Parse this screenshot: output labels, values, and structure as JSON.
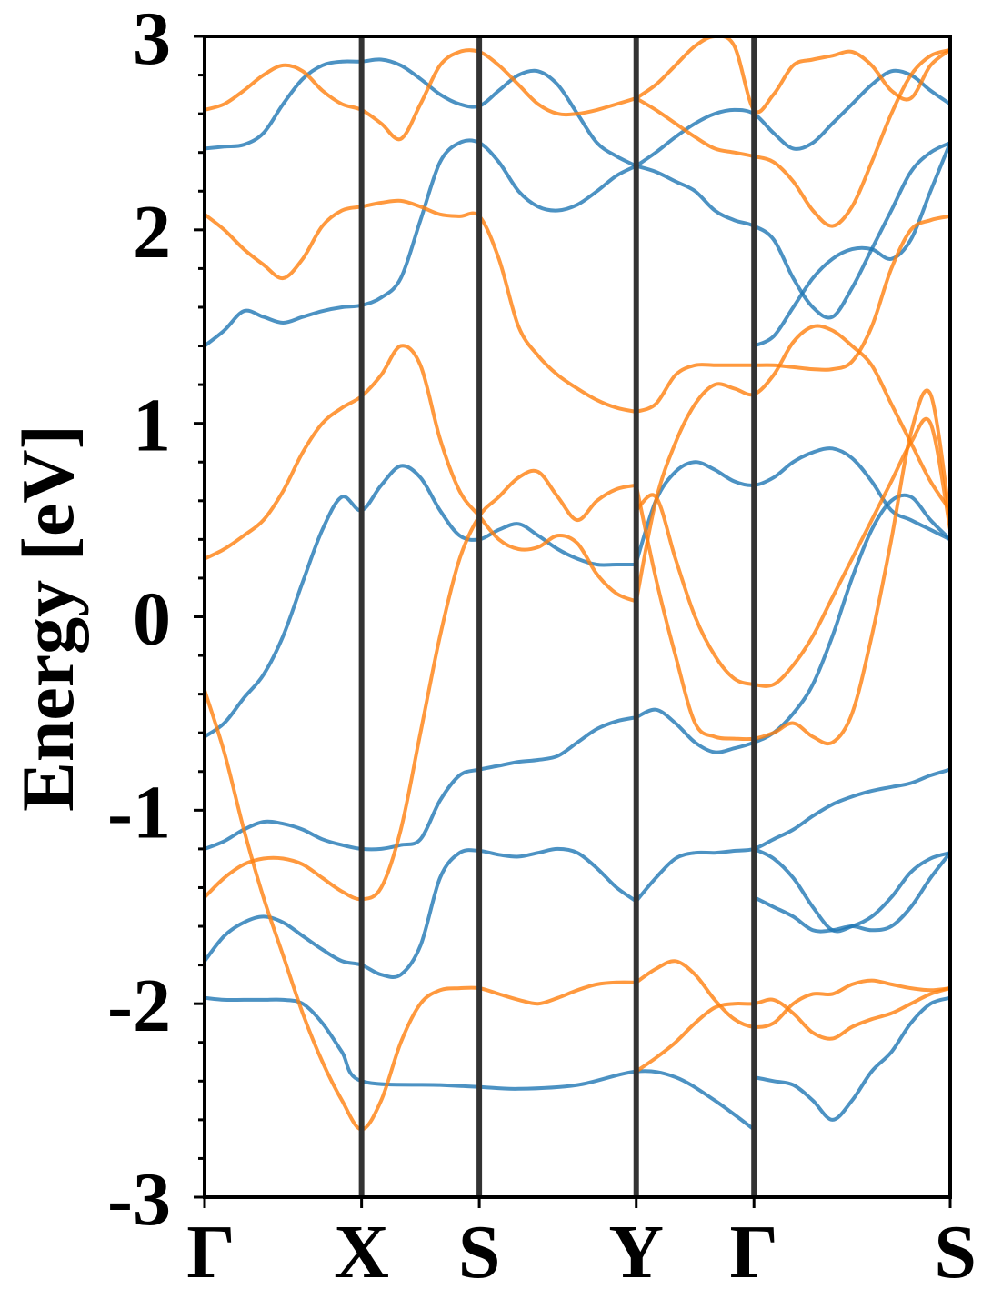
{
  "chart_data": {
    "type": "line",
    "title": "",
    "xlabel": "",
    "ylabel": "Energy [eV]",
    "ylim": [
      -3,
      3
    ],
    "yticks": [
      "3",
      "2",
      "1",
      "0",
      "-1",
      "-2",
      "-3"
    ],
    "ytick_values": [
      3,
      2,
      1,
      0,
      -1,
      -2,
      -3
    ],
    "yminor_step": 0.2,
    "kpath_labels": [
      "Γ",
      "X",
      "S",
      "Y",
      "Γ",
      "S"
    ],
    "kpath_positions": [
      0,
      0.8,
      1.4,
      2.2,
      2.8,
      3.8
    ],
    "colors": {
      "blue": "#1f77b4",
      "orange": "#ff7f0e",
      "kline": "#333333"
    },
    "grid": false,
    "legend": "none",
    "series": [
      {
        "color": "#1f77b4",
        "x": [
          0,
          0.1,
          0.2,
          0.3,
          0.4,
          0.5,
          0.6,
          0.7,
          0.8,
          0.9,
          1.0,
          1.1,
          1.2,
          1.3,
          1.4,
          1.5,
          1.6,
          1.7,
          1.8,
          1.9,
          2.0,
          2.1,
          2.2
        ],
        "y": [
          -0.62,
          -0.55,
          -0.42,
          -0.3,
          -0.1,
          0.18,
          0.45,
          0.62,
          0.55,
          0.68,
          0.78,
          0.72,
          0.55,
          0.42,
          0.4,
          0.45,
          0.48,
          0.42,
          0.35,
          0.3,
          0.27,
          0.27,
          0.27
        ]
      },
      {
        "color": "#1f77b4",
        "x": [
          0,
          0.1,
          0.2,
          0.3,
          0.4,
          0.5,
          0.6,
          0.7,
          0.8,
          0.9,
          1.0,
          1.1,
          1.2,
          1.3,
          1.4,
          1.5,
          1.6,
          1.7,
          1.8,
          1.9,
          2.0,
          2.1,
          2.2
        ],
        "y": [
          -1.2,
          -1.16,
          -1.1,
          -1.06,
          -1.07,
          -1.1,
          -1.15,
          -1.18,
          -1.2,
          -1.2,
          -1.18,
          -1.15,
          -0.95,
          -0.82,
          -0.79,
          -0.77,
          -0.75,
          -0.74,
          -0.72,
          -0.65,
          -0.58,
          -0.54,
          -0.52
        ]
      },
      {
        "color": "#1f77b4",
        "x": [
          0,
          0.1,
          0.2,
          0.3,
          0.4,
          0.5,
          0.6,
          0.7,
          0.8,
          0.9,
          1.0,
          1.1,
          1.2,
          1.3,
          1.4,
          1.5,
          1.6,
          1.7,
          1.8,
          1.9,
          2.0,
          2.1,
          2.2
        ],
        "y": [
          -1.78,
          -1.65,
          -1.58,
          -1.55,
          -1.58,
          -1.65,
          -1.72,
          -1.78,
          -1.8,
          -1.85,
          -1.85,
          -1.7,
          -1.35,
          -1.22,
          -1.21,
          -1.23,
          -1.24,
          -1.22,
          -1.2,
          -1.22,
          -1.3,
          -1.4,
          -1.47
        ]
      },
      {
        "color": "#1f77b4",
        "x": [
          0,
          0.1,
          0.2,
          0.3,
          0.4,
          0.5,
          0.6,
          0.7,
          0.8,
          0.9,
          1.0,
          1.1,
          1.2,
          1.3,
          1.4,
          1.5,
          1.6,
          1.7,
          1.8,
          1.9,
          2.0,
          2.1,
          2.2
        ],
        "y": [
          2.42,
          2.43,
          2.44,
          2.5,
          2.65,
          2.78,
          2.85,
          2.87,
          2.87,
          2.88,
          2.85,
          2.78,
          2.7,
          2.65,
          2.64,
          2.72,
          2.8,
          2.82,
          2.75,
          2.6,
          2.45,
          2.38,
          2.33
        ]
      },
      {
        "color": "#1f77b4",
        "x": [
          0,
          0.1,
          0.2,
          0.3,
          0.4,
          0.5,
          0.6,
          0.7,
          0.8,
          0.9,
          1.0,
          1.1,
          1.2,
          1.3,
          1.4,
          1.5,
          1.6,
          1.7,
          1.8,
          1.9,
          2.0,
          2.1,
          2.2
        ],
        "y": [
          1.4,
          1.48,
          1.58,
          1.55,
          1.52,
          1.55,
          1.58,
          1.6,
          1.61,
          1.65,
          1.75,
          2.05,
          2.35,
          2.45,
          2.45,
          2.35,
          2.2,
          2.12,
          2.1,
          2.13,
          2.2,
          2.28,
          2.33
        ]
      },
      {
        "color": "#1f77b4",
        "x": [
          0,
          0.1,
          0.2,
          0.3,
          0.4,
          0.5,
          0.6,
          0.7,
          0.8,
          1.2,
          1.4,
          1.6,
          1.9,
          2.2,
          2.4,
          2.6,
          2.8
        ],
        "y": [
          -1.97,
          -1.98,
          -1.98,
          -1.98,
          -1.98,
          -2.0,
          -2.1,
          -2.25,
          -2.4,
          -2.42,
          -2.43,
          -2.44,
          -2.42,
          -2.35,
          -2.38,
          -2.5,
          -2.65
        ]
      },
      {
        "color": "#1f77b4",
        "x": [
          2.2,
          2.3,
          2.4,
          2.5,
          2.6,
          2.7,
          2.8,
          2.9,
          3.0,
          3.1,
          3.2,
          3.3,
          3.4,
          3.5,
          3.6,
          3.7,
          3.8
        ],
        "y": [
          0.28,
          0.6,
          0.75,
          0.8,
          0.76,
          0.7,
          0.68,
          0.72,
          0.8,
          0.85,
          0.87,
          0.82,
          0.7,
          0.55,
          0.5,
          0.45,
          0.4
        ]
      },
      {
        "color": "#1f77b4",
        "x": [
          2.2,
          2.3,
          2.4,
          2.5,
          2.6,
          2.7,
          2.8,
          2.9,
          3.0,
          3.1,
          3.2,
          3.3,
          3.4,
          3.5,
          3.6,
          3.7,
          3.8
        ],
        "y": [
          -0.52,
          -0.48,
          -0.55,
          -0.65,
          -0.7,
          -0.68,
          -0.65,
          -0.6,
          -0.5,
          -0.35,
          -0.1,
          0.2,
          0.45,
          0.6,
          0.62,
          0.5,
          0.4
        ]
      },
      {
        "color": "#1f77b4",
        "x": [
          2.2,
          2.3,
          2.4,
          2.5,
          2.6,
          2.7,
          2.8,
          2.9,
          3.0,
          3.1,
          3.2,
          3.3,
          3.4,
          3.5,
          3.6,
          3.7,
          3.8
        ],
        "y": [
          -1.47,
          -1.35,
          -1.25,
          -1.22,
          -1.22,
          -1.21,
          -1.2,
          -1.15,
          -1.1,
          -1.03,
          -0.97,
          -0.93,
          -0.9,
          -0.88,
          -0.86,
          -0.82,
          -0.79
        ]
      },
      {
        "color": "#1f77b4",
        "x": [
          2.2,
          2.3,
          2.4,
          2.5,
          2.6,
          2.7,
          2.8,
          2.9,
          3.0,
          3.1,
          3.2,
          3.3,
          3.4,
          3.5,
          3.6,
          3.7,
          3.8
        ],
        "y": [
          2.33,
          2.3,
          2.25,
          2.2,
          2.1,
          2.05,
          2.02,
          1.95,
          1.75,
          1.6,
          1.55,
          1.7,
          1.9,
          2.1,
          2.3,
          2.4,
          2.45
        ]
      },
      {
        "color": "#1f77b4",
        "x": [
          2.2,
          2.3,
          2.4,
          2.5,
          2.6,
          2.7,
          2.8,
          2.9,
          3.0,
          3.1,
          3.2,
          3.3,
          3.4,
          3.5,
          3.6,
          3.7,
          3.8
        ],
        "y": [
          2.33,
          2.4,
          2.48,
          2.55,
          2.6,
          2.62,
          2.6,
          2.5,
          2.42,
          2.45,
          2.55,
          2.65,
          2.75,
          2.82,
          2.8,
          2.72,
          2.65
        ]
      },
      {
        "color": "#1f77b4",
        "x": [
          2.8,
          2.9,
          3.0,
          3.1,
          3.2,
          3.3,
          3.4,
          3.5,
          3.6,
          3.7,
          3.8
        ],
        "y": [
          1.4,
          1.45,
          1.6,
          1.75,
          1.85,
          1.9,
          1.9,
          1.85,
          1.95,
          2.2,
          2.45
        ]
      },
      {
        "color": "#1f77b4",
        "x": [
          2.8,
          2.9,
          3.0,
          3.1,
          3.2,
          3.3,
          3.4,
          3.5,
          3.6,
          3.7,
          3.8
        ],
        "y": [
          -1.2,
          -1.25,
          -1.35,
          -1.5,
          -1.62,
          -1.6,
          -1.55,
          -1.45,
          -1.32,
          -1.25,
          -1.22
        ]
      },
      {
        "color": "#1f77b4",
        "x": [
          2.8,
          2.9,
          3.0,
          3.1,
          3.2,
          3.3,
          3.4,
          3.5,
          3.6,
          3.7,
          3.8
        ],
        "y": [
          -1.45,
          -1.5,
          -1.55,
          -1.62,
          -1.62,
          -1.6,
          -1.62,
          -1.6,
          -1.5,
          -1.35,
          -1.22
        ]
      },
      {
        "color": "#1f77b4",
        "x": [
          2.8,
          2.9,
          3.0,
          3.1,
          3.2,
          3.3,
          3.4,
          3.5,
          3.6,
          3.7,
          3.8
        ],
        "y": [
          -2.38,
          -2.4,
          -2.42,
          -2.5,
          -2.6,
          -2.5,
          -2.35,
          -2.25,
          -2.1,
          -2.0,
          -1.97
        ]
      },
      {
        "color": "#ff7f0e",
        "x": [
          0,
          0.1,
          0.2,
          0.3,
          0.4,
          0.5,
          0.6,
          0.7,
          0.8,
          0.9,
          1.0,
          1.1,
          1.2,
          1.3,
          1.4,
          1.5,
          1.6,
          1.7,
          1.8,
          1.9,
          2.0,
          2.1,
          2.2
        ],
        "y": [
          2.08,
          2.0,
          1.9,
          1.82,
          1.75,
          1.85,
          2.02,
          2.1,
          2.12,
          2.14,
          2.15,
          2.12,
          2.08,
          2.07,
          2.07,
          1.85,
          1.5,
          1.35,
          1.25,
          1.18,
          1.12,
          1.08,
          1.06
        ]
      },
      {
        "color": "#ff7f0e",
        "x": [
          0,
          0.1,
          0.2,
          0.3,
          0.4,
          0.5,
          0.6,
          0.7,
          0.8,
          0.9,
          1.0,
          1.1,
          1.2,
          1.3,
          1.4,
          1.5,
          1.6,
          1.7,
          1.8,
          1.9,
          2.0,
          2.1,
          2.2
        ],
        "y": [
          0.3,
          0.35,
          0.42,
          0.5,
          0.65,
          0.85,
          1.0,
          1.08,
          1.14,
          1.25,
          1.4,
          1.3,
          0.92,
          0.65,
          0.52,
          0.4,
          0.35,
          0.36,
          0.42,
          0.38,
          0.22,
          0.12,
          0.08
        ]
      },
      {
        "color": "#ff7f0e",
        "x": [
          0,
          0.1,
          0.2,
          0.3,
          0.4,
          0.5,
          0.6,
          0.7,
          0.8,
          0.9,
          1.0,
          1.1,
          1.2,
          1.3,
          1.4,
          1.5,
          1.6,
          1.7,
          1.8,
          1.9,
          2.0,
          2.1,
          2.2
        ],
        "y": [
          2.62,
          2.65,
          2.72,
          2.8,
          2.85,
          2.82,
          2.72,
          2.65,
          2.62,
          2.55,
          2.47,
          2.65,
          2.85,
          2.92,
          2.92,
          2.85,
          2.75,
          2.65,
          2.6,
          2.6,
          2.62,
          2.65,
          2.68
        ]
      },
      {
        "color": "#ff7f0e",
        "x": [
          0,
          0.1,
          0.2,
          0.3,
          0.4,
          0.5,
          0.6,
          0.7,
          0.8,
          0.9,
          1.0,
          1.1,
          1.2,
          1.3,
          1.4,
          1.5,
          1.6,
          1.7,
          1.8,
          1.9,
          2.0,
          2.1,
          2.2
        ],
        "y": [
          -1.45,
          -1.35,
          -1.28,
          -1.25,
          -1.25,
          -1.28,
          -1.35,
          -1.42,
          -1.46,
          -1.4,
          -1.1,
          -0.6,
          -0.1,
          0.3,
          0.52,
          0.62,
          0.72,
          0.75,
          0.62,
          0.5,
          0.6,
          0.66,
          0.68
        ]
      },
      {
        "color": "#ff7f0e",
        "x": [
          0,
          0.1,
          0.2,
          0.3,
          0.4,
          0.5,
          0.6,
          0.7,
          0.8,
          0.9,
          1.0,
          1.1,
          1.2,
          1.3,
          1.4,
          1.5,
          1.6,
          1.7,
          1.8,
          1.9,
          2.0,
          2.1,
          2.2
        ],
        "y": [
          -0.38,
          -0.7,
          -1.1,
          -1.45,
          -1.75,
          -2.05,
          -2.3,
          -2.5,
          -2.65,
          -2.5,
          -2.2,
          -2.0,
          -1.93,
          -1.92,
          -1.92,
          -1.95,
          -1.98,
          -2.0,
          -1.97,
          -1.93,
          -1.9,
          -1.89,
          -1.89
        ]
      },
      {
        "color": "#ff7f0e",
        "x": [
          2.2,
          2.3,
          2.4,
          2.5,
          2.6,
          2.7,
          2.8,
          2.9,
          3.0,
          3.1,
          3.2,
          3.3,
          3.4,
          3.5,
          3.6,
          3.7,
          3.8
        ],
        "y": [
          1.06,
          1.1,
          1.25,
          1.3,
          1.3,
          1.3,
          1.3,
          1.3,
          1.29,
          1.28,
          1.28,
          1.32,
          1.5,
          1.8,
          2.0,
          2.05,
          2.07
        ]
      },
      {
        "color": "#ff7f0e",
        "x": [
          2.2,
          2.3,
          2.4,
          2.5,
          2.6,
          2.7,
          2.8,
          2.9,
          3.0,
          3.1,
          3.2,
          3.3,
          3.4,
          3.5,
          3.6,
          3.7,
          3.8
        ],
        "y": [
          0.08,
          0.6,
          0.9,
          1.1,
          1.2,
          1.18,
          1.15,
          1.25,
          1.42,
          1.5,
          1.48,
          1.4,
          1.3,
          1.1,
          0.9,
          0.7,
          0.55
        ]
      },
      {
        "color": "#ff7f0e",
        "x": [
          2.2,
          2.3,
          2.4,
          2.5,
          2.6,
          2.7,
          2.8,
          2.9,
          3.0,
          3.1,
          3.2,
          3.3,
          3.4,
          3.5,
          3.6,
          3.7,
          3.8
        ],
        "y": [
          0.68,
          0.2,
          -0.2,
          -0.55,
          -0.62,
          -0.63,
          -0.63,
          -0.6,
          -0.55,
          -0.62,
          -0.65,
          -0.5,
          -0.1,
          0.4,
          0.95,
          1.15,
          0.5
        ]
      },
      {
        "color": "#ff7f0e",
        "x": [
          2.2,
          2.3,
          2.4,
          2.5,
          2.6,
          2.7,
          2.8,
          2.9,
          3.0,
          3.1,
          3.2,
          3.3,
          3.4,
          3.5,
          3.6,
          3.7,
          3.8
        ],
        "y": [
          0.55,
          0.62,
          0.3,
          0.0,
          -0.2,
          -0.32,
          -0.35,
          -0.35,
          -0.25,
          -0.1,
          0.1,
          0.3,
          0.5,
          0.7,
          0.9,
          1.0,
          0.45
        ]
      },
      {
        "color": "#ff7f0e",
        "x": [
          2.2,
          2.3,
          2.4,
          2.5,
          2.6,
          2.7,
          2.8,
          2.9,
          3.0,
          3.1,
          3.2,
          3.3,
          3.4,
          3.5,
          3.6,
          3.7,
          3.8
        ],
        "y": [
          -2.35,
          -2.28,
          -2.2,
          -2.1,
          -2.02,
          -2.0,
          -2.0,
          -1.98,
          -2.05,
          -2.15,
          -2.18,
          -2.12,
          -2.08,
          -2.05,
          -2.0,
          -1.95,
          -1.92
        ]
      },
      {
        "color": "#ff7f0e",
        "x": [
          2.2,
          2.3,
          2.4,
          2.5,
          2.6,
          2.7,
          2.8,
          2.9,
          3.0,
          3.1,
          3.2,
          3.3,
          3.4,
          3.5,
          3.6,
          3.7,
          3.8
        ],
        "y": [
          -1.89,
          -1.82,
          -1.78,
          -1.85,
          -1.98,
          -2.08,
          -2.12,
          -2.1,
          -2.0,
          -1.95,
          -1.95,
          -1.9,
          -1.88,
          -1.9,
          -1.92,
          -1.93,
          -1.92
        ]
      },
      {
        "color": "#ff7f0e",
        "x": [
          2.2,
          2.3,
          2.4,
          2.5,
          2.6,
          2.7,
          2.8,
          2.9,
          3.0,
          3.1,
          3.2,
          3.3,
          3.4,
          3.5,
          3.6,
          3.7,
          3.8
        ],
        "y": [
          2.68,
          2.62,
          2.55,
          2.48,
          2.42,
          2.4,
          2.38,
          2.35,
          2.25,
          2.1,
          2.02,
          2.12,
          2.35,
          2.6,
          2.8,
          2.9,
          2.93
        ]
      },
      {
        "color": "#ff7f0e",
        "x": [
          2.2,
          2.3,
          2.4,
          2.5,
          2.6,
          2.7,
          2.8,
          2.9,
          3.0,
          3.1,
          3.2,
          3.3,
          3.4,
          3.5,
          3.6,
          3.7,
          3.8
        ],
        "y": [
          2.68,
          2.75,
          2.85,
          2.95,
          3.0,
          2.95,
          2.62,
          2.7,
          2.85,
          2.88,
          2.9,
          2.92,
          2.85,
          2.72,
          2.68,
          2.85,
          2.93
        ]
      }
    ]
  }
}
